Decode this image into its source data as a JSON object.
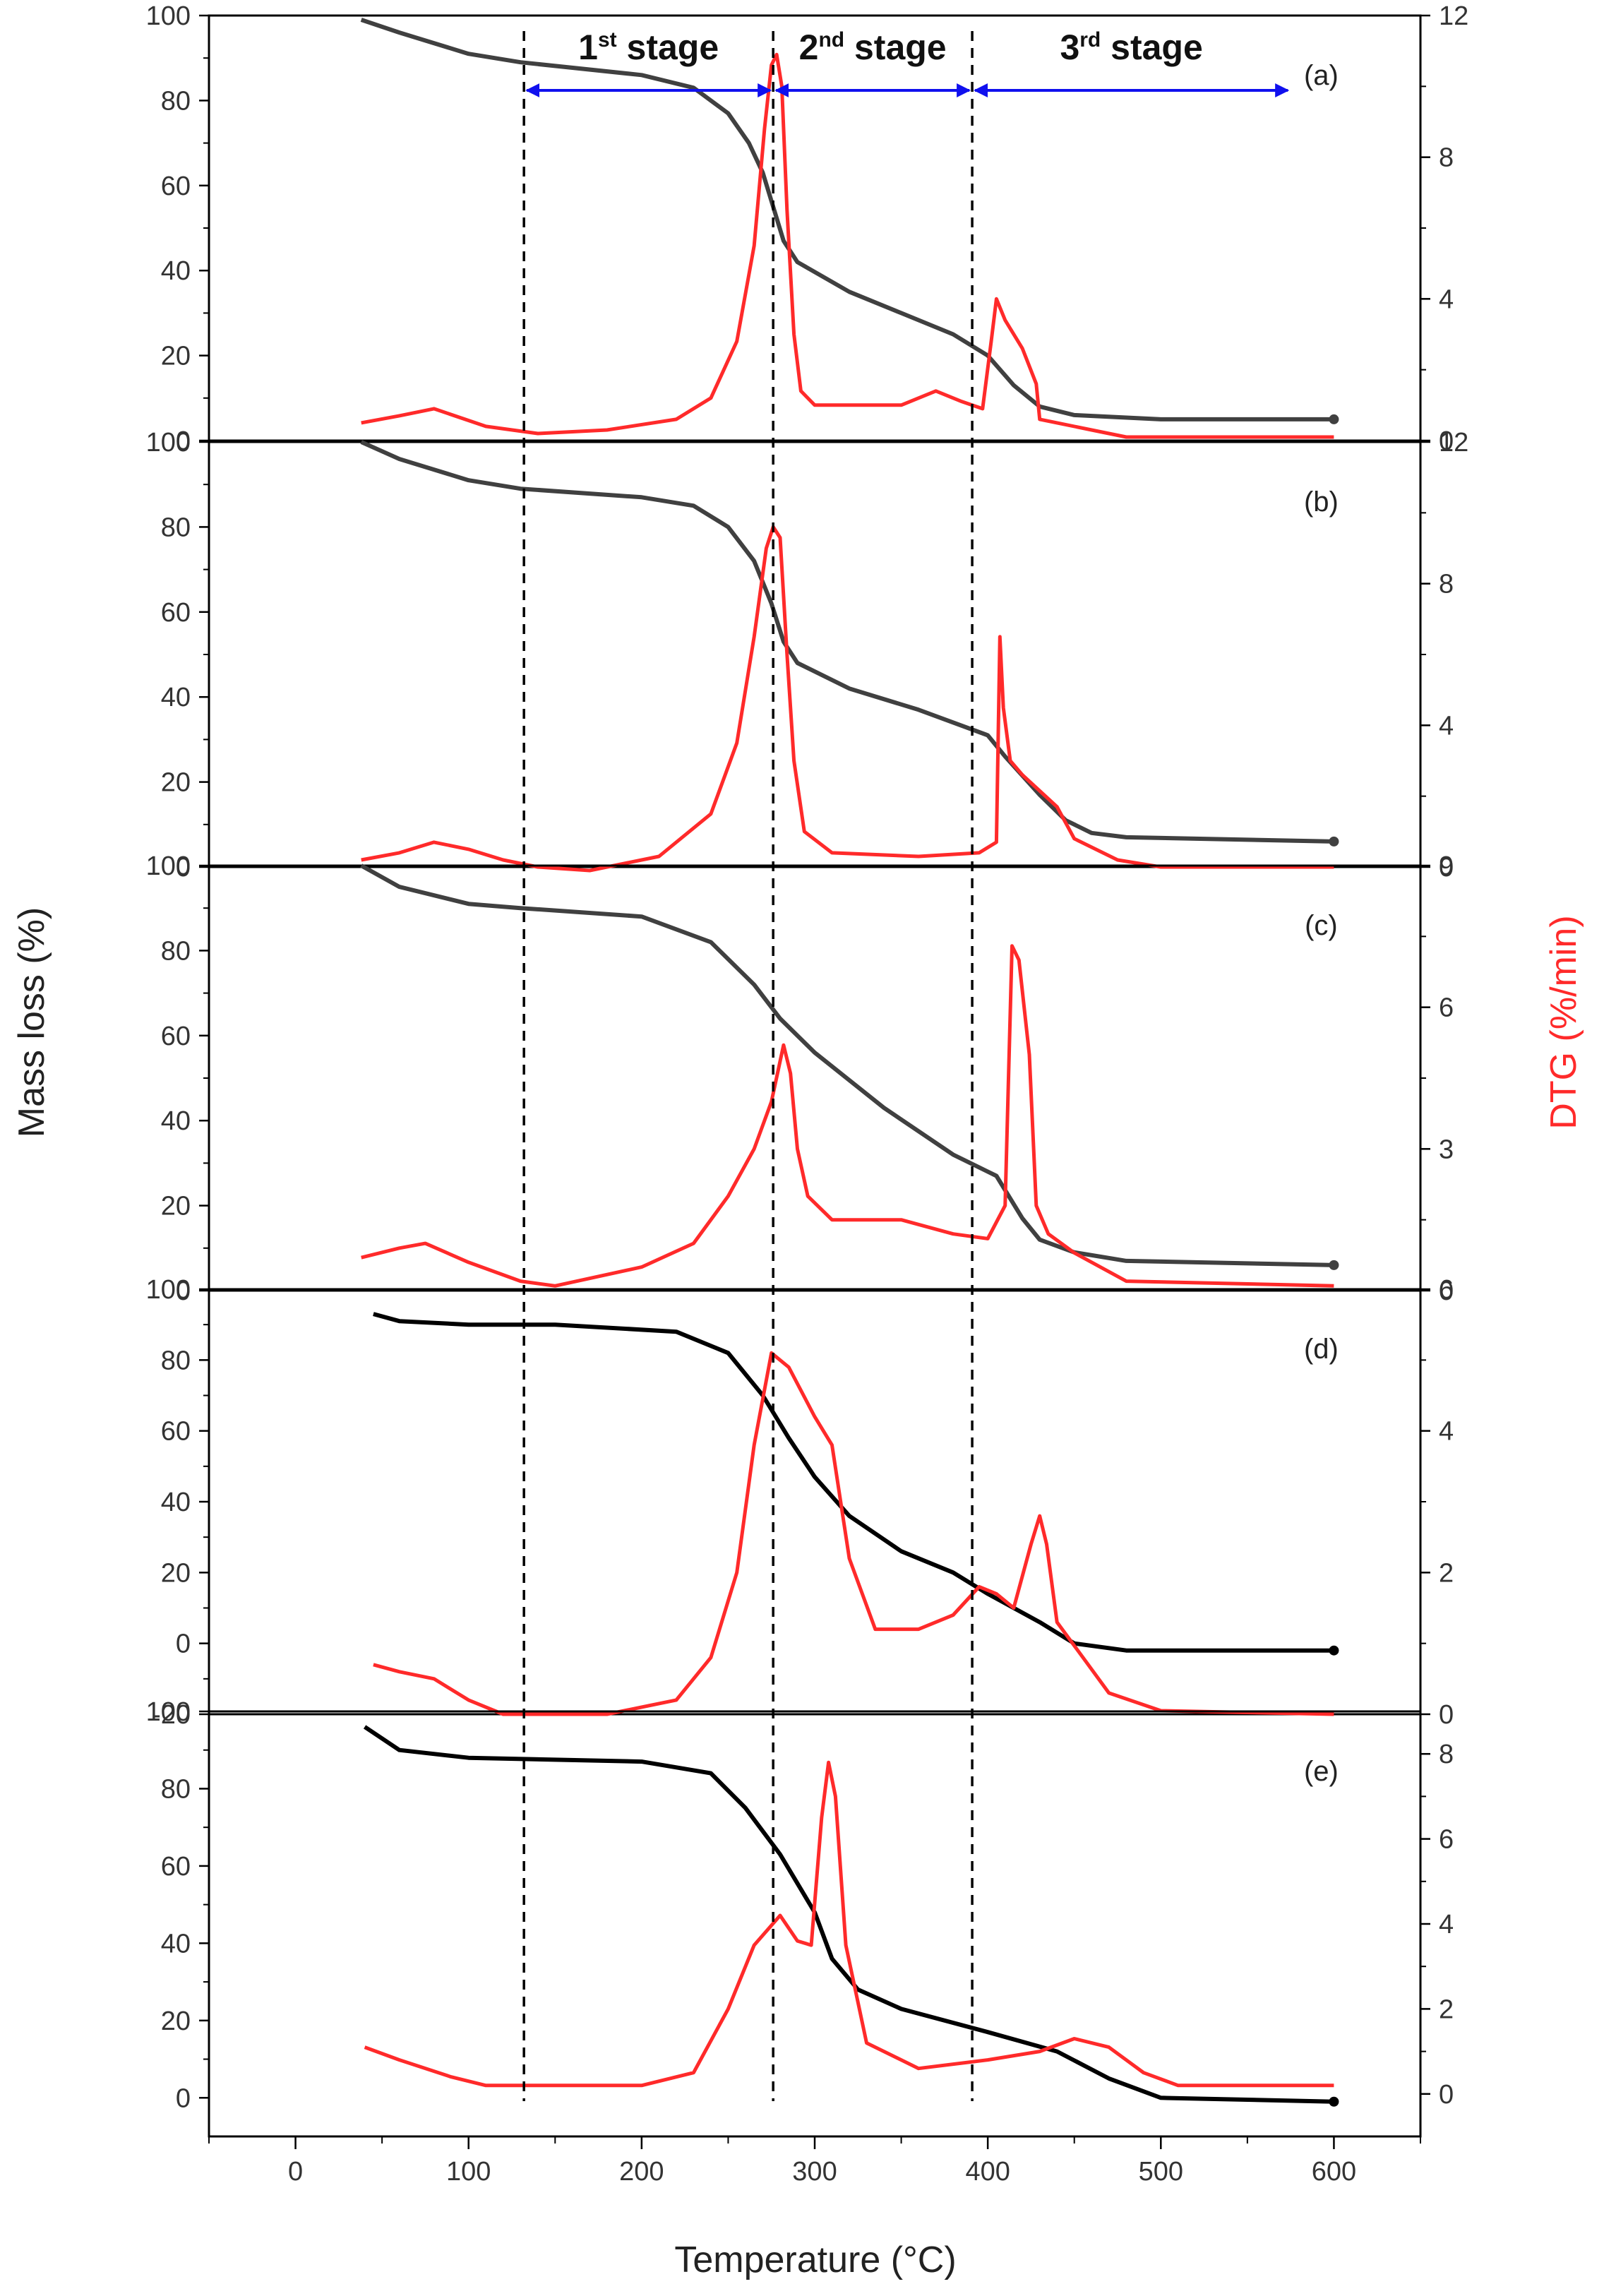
{
  "chart_data": {
    "type": "line",
    "title": "",
    "xlabel": "Temperature (°C)",
    "ylabel_left": "Mass loss (%)",
    "ylabel_right": "DTG (%/min)",
    "xlim": [
      -50,
      650
    ],
    "xticks": [
      0,
      100,
      200,
      300,
      400,
      500,
      600
    ],
    "xtick_labels": [
      "0",
      "100",
      "200",
      "300",
      "400",
      "500",
      "600"
    ],
    "colors": {
      "mass": "#404040",
      "mass_dark": "#000000",
      "dtg": "#ff2a2a",
      "arrow": "#1010ee"
    },
    "stage_boundaries": [
      132,
      276,
      391
    ],
    "stages": [
      {
        "base": "1",
        "sup": "st",
        "text": " stage",
        "x_range": [
          132,
          276
        ]
      },
      {
        "base": "2",
        "sup": "nd",
        "text": " stage",
        "x_range": [
          276,
          391
        ]
      },
      {
        "base": "3",
        "sup": "rd",
        "text": " stage",
        "x_range": [
          391,
          575
        ]
      }
    ],
    "panels": [
      {
        "label": "(a)",
        "ylim_left": [
          0,
          100
        ],
        "yticks_left": [
          0,
          20,
          40,
          60,
          80,
          100
        ],
        "ytick_labels_left": [
          "0",
          "20",
          "40",
          "60",
          "80",
          "100"
        ],
        "ylim_right": [
          0,
          12
        ],
        "yticks_right": [
          0,
          4,
          8,
          12
        ],
        "ytick_labels_right": [
          "0",
          "4",
          "8",
          "12"
        ],
        "mass": [
          [
            38,
            99
          ],
          [
            60,
            96
          ],
          [
            100,
            91
          ],
          [
            130,
            89
          ],
          [
            200,
            86
          ],
          [
            230,
            83
          ],
          [
            250,
            77
          ],
          [
            262,
            70
          ],
          [
            270,
            63
          ],
          [
            276,
            55
          ],
          [
            282,
            47
          ],
          [
            290,
            42
          ],
          [
            320,
            35
          ],
          [
            350,
            30
          ],
          [
            380,
            25
          ],
          [
            400,
            20
          ],
          [
            415,
            13
          ],
          [
            430,
            8
          ],
          [
            450,
            6
          ],
          [
            500,
            5
          ],
          [
            600,
            5
          ]
        ],
        "dtg": [
          [
            38,
            0.5
          ],
          [
            60,
            0.7
          ],
          [
            80,
            0.9
          ],
          [
            110,
            0.4
          ],
          [
            140,
            0.2
          ],
          [
            180,
            0.3
          ],
          [
            220,
            0.6
          ],
          [
            240,
            1.2
          ],
          [
            255,
            2.8
          ],
          [
            265,
            5.5
          ],
          [
            271,
            8.8
          ],
          [
            275,
            10.6
          ],
          [
            278,
            10.9
          ],
          [
            281,
            10.0
          ],
          [
            284,
            6.5
          ],
          [
            288,
            3.0
          ],
          [
            292,
            1.4
          ],
          [
            300,
            1.0
          ],
          [
            350,
            1.0
          ],
          [
            370,
            1.4
          ],
          [
            385,
            1.1
          ],
          [
            397,
            0.9
          ],
          [
            402,
            2.8
          ],
          [
            405,
            4.0
          ],
          [
            410,
            3.4
          ],
          [
            420,
            2.6
          ],
          [
            428,
            1.6
          ],
          [
            430,
            0.6
          ],
          [
            440,
            0.5
          ],
          [
            460,
            0.3
          ],
          [
            480,
            0.1
          ],
          [
            600,
            0.1
          ]
        ]
      },
      {
        "label": "(b)",
        "ylim_left": [
          0,
          100
        ],
        "yticks_left": [
          0,
          20,
          40,
          60,
          80,
          100
        ],
        "ytick_labels_left": [
          "0",
          "20",
          "40",
          "60",
          "80",
          "100"
        ],
        "ylim_right": [
          0,
          12
        ],
        "yticks_right": [
          0,
          4,
          8,
          12
        ],
        "ytick_labels_right": [
          "0",
          "4",
          "8",
          "12"
        ],
        "mass": [
          [
            38,
            100
          ],
          [
            60,
            96
          ],
          [
            100,
            91
          ],
          [
            130,
            89
          ],
          [
            200,
            87
          ],
          [
            230,
            85
          ],
          [
            250,
            80
          ],
          [
            265,
            72
          ],
          [
            275,
            62
          ],
          [
            282,
            53
          ],
          [
            290,
            48
          ],
          [
            320,
            42
          ],
          [
            360,
            37
          ],
          [
            400,
            31
          ],
          [
            410,
            26
          ],
          [
            430,
            17
          ],
          [
            445,
            11
          ],
          [
            460,
            8
          ],
          [
            480,
            7
          ],
          [
            600,
            6
          ]
        ],
        "dtg": [
          [
            38,
            0.2
          ],
          [
            60,
            0.4
          ],
          [
            80,
            0.7
          ],
          [
            100,
            0.5
          ],
          [
            120,
            0.2
          ],
          [
            140,
            0.0
          ],
          [
            170,
            -0.1
          ],
          [
            210,
            0.3
          ],
          [
            240,
            1.5
          ],
          [
            255,
            3.5
          ],
          [
            265,
            6.5
          ],
          [
            272,
            9.0
          ],
          [
            276,
            9.6
          ],
          [
            280,
            9.3
          ],
          [
            284,
            6.0
          ],
          [
            288,
            3.0
          ],
          [
            294,
            1.0
          ],
          [
            310,
            0.4
          ],
          [
            360,
            0.3
          ],
          [
            395,
            0.4
          ],
          [
            405,
            0.7
          ],
          [
            407,
            6.5
          ],
          [
            409,
            4.5
          ],
          [
            413,
            3.0
          ],
          [
            420,
            2.6
          ],
          [
            440,
            1.7
          ],
          [
            450,
            0.8
          ],
          [
            475,
            0.2
          ],
          [
            500,
            0.0
          ],
          [
            600,
            0.0
          ]
        ]
      },
      {
        "label": "(c)",
        "ylim_left": [
          0,
          100
        ],
        "yticks_left": [
          0,
          20,
          40,
          60,
          80,
          100
        ],
        "ytick_labels_left": [
          "0",
          "20",
          "40",
          "60",
          "80",
          "100"
        ],
        "ylim_right": [
          0,
          9
        ],
        "yticks_right": [
          0,
          3,
          6,
          9
        ],
        "ytick_labels_right": [
          "0",
          "3",
          "6",
          "9"
        ],
        "mass": [
          [
            38,
            100
          ],
          [
            60,
            95
          ],
          [
            100,
            91
          ],
          [
            130,
            90
          ],
          [
            200,
            88
          ],
          [
            240,
            82
          ],
          [
            265,
            72
          ],
          [
            280,
            64
          ],
          [
            300,
            56
          ],
          [
            340,
            43
          ],
          [
            380,
            32
          ],
          [
            405,
            27
          ],
          [
            420,
            17
          ],
          [
            430,
            12
          ],
          [
            450,
            9
          ],
          [
            480,
            7
          ],
          [
            600,
            6
          ]
        ],
        "dtg": [
          [
            38,
            0.7
          ],
          [
            60,
            0.9
          ],
          [
            75,
            1.0
          ],
          [
            100,
            0.6
          ],
          [
            130,
            0.2
          ],
          [
            150,
            0.1
          ],
          [
            200,
            0.5
          ],
          [
            230,
            1.0
          ],
          [
            250,
            2.0
          ],
          [
            265,
            3.0
          ],
          [
            275,
            4.0
          ],
          [
            282,
            5.2
          ],
          [
            286,
            4.6
          ],
          [
            290,
            3.0
          ],
          [
            296,
            2.0
          ],
          [
            310,
            1.5
          ],
          [
            350,
            1.5
          ],
          [
            380,
            1.2
          ],
          [
            400,
            1.1
          ],
          [
            410,
            1.8
          ],
          [
            414,
            7.3
          ],
          [
            418,
            7.0
          ],
          [
            424,
            5.0
          ],
          [
            428,
            1.8
          ],
          [
            435,
            1.2
          ],
          [
            450,
            0.8
          ],
          [
            480,
            0.2
          ],
          [
            600,
            0.1
          ]
        ]
      },
      {
        "label": "(d)",
        "ylim_left": [
          -20,
          100
        ],
        "yticks_left": [
          -20,
          0,
          20,
          40,
          60,
          80,
          100
        ],
        "ytick_labels_left": [
          "-20",
          "0",
          "20",
          "40",
          "60",
          "80",
          "100"
        ],
        "ylim_right": [
          0,
          6
        ],
        "yticks_right": [
          0,
          2,
          4,
          6
        ],
        "ytick_labels_right": [
          "0",
          "2",
          "4",
          "6"
        ],
        "mass": [
          [
            45,
            93
          ],
          [
            60,
            91
          ],
          [
            100,
            90
          ],
          [
            150,
            90
          ],
          [
            220,
            88
          ],
          [
            250,
            82
          ],
          [
            270,
            70
          ],
          [
            285,
            58
          ],
          [
            300,
            47
          ],
          [
            320,
            36
          ],
          [
            350,
            26
          ],
          [
            380,
            20
          ],
          [
            400,
            14
          ],
          [
            430,
            6
          ],
          [
            450,
            0
          ],
          [
            480,
            -2
          ],
          [
            600,
            -2
          ]
        ],
        "dtg": [
          [
            45,
            0.7
          ],
          [
            60,
            0.6
          ],
          [
            80,
            0.5
          ],
          [
            100,
            0.2
          ],
          [
            120,
            0.0
          ],
          [
            180,
            0.0
          ],
          [
            220,
            0.2
          ],
          [
            240,
            0.8
          ],
          [
            255,
            2.0
          ],
          [
            265,
            3.8
          ],
          [
            275,
            5.1
          ],
          [
            285,
            4.9
          ],
          [
            300,
            4.2
          ],
          [
            310,
            3.8
          ],
          [
            320,
            2.2
          ],
          [
            335,
            1.2
          ],
          [
            360,
            1.2
          ],
          [
            380,
            1.4
          ],
          [
            395,
            1.8
          ],
          [
            405,
            1.7
          ],
          [
            415,
            1.5
          ],
          [
            425,
            2.4
          ],
          [
            430,
            2.8
          ],
          [
            434,
            2.4
          ],
          [
            440,
            1.3
          ],
          [
            455,
            0.8
          ],
          [
            470,
            0.3
          ],
          [
            500,
            0.05
          ],
          [
            600,
            0.0
          ]
        ]
      },
      {
        "label": "(e)",
        "ylim_left": [
          -10,
          100
        ],
        "yticks_left": [
          0,
          20,
          40,
          60,
          80,
          100
        ],
        "ytick_labels_left": [
          "0",
          "20",
          "40",
          "60",
          "80",
          "100"
        ],
        "ylim_right": [
          -1,
          9
        ],
        "yticks_right": [
          0,
          2,
          4,
          6,
          8
        ],
        "ytick_labels_right": [
          "0",
          "2",
          "4",
          "6",
          "8"
        ],
        "mass": [
          [
            40,
            96
          ],
          [
            60,
            90
          ],
          [
            100,
            88
          ],
          [
            200,
            87
          ],
          [
            240,
            84
          ],
          [
            260,
            75
          ],
          [
            280,
            63
          ],
          [
            300,
            48
          ],
          [
            310,
            36
          ],
          [
            325,
            28
          ],
          [
            350,
            23
          ],
          [
            400,
            17
          ],
          [
            440,
            12
          ],
          [
            470,
            5
          ],
          [
            500,
            0
          ],
          [
            600,
            -1
          ]
        ],
        "dtg": [
          [
            40,
            1.1
          ],
          [
            60,
            0.8
          ],
          [
            90,
            0.4
          ],
          [
            110,
            0.2
          ],
          [
            200,
            0.2
          ],
          [
            230,
            0.5
          ],
          [
            250,
            2.0
          ],
          [
            265,
            3.5
          ],
          [
            280,
            4.2
          ],
          [
            290,
            3.6
          ],
          [
            298,
            3.5
          ],
          [
            304,
            6.5
          ],
          [
            308,
            7.8
          ],
          [
            312,
            7.0
          ],
          [
            318,
            3.5
          ],
          [
            330,
            1.2
          ],
          [
            360,
            0.6
          ],
          [
            400,
            0.8
          ],
          [
            430,
            1.0
          ],
          [
            450,
            1.3
          ],
          [
            470,
            1.1
          ],
          [
            490,
            0.5
          ],
          [
            510,
            0.2
          ],
          [
            600,
            0.2
          ]
        ]
      }
    ]
  }
}
